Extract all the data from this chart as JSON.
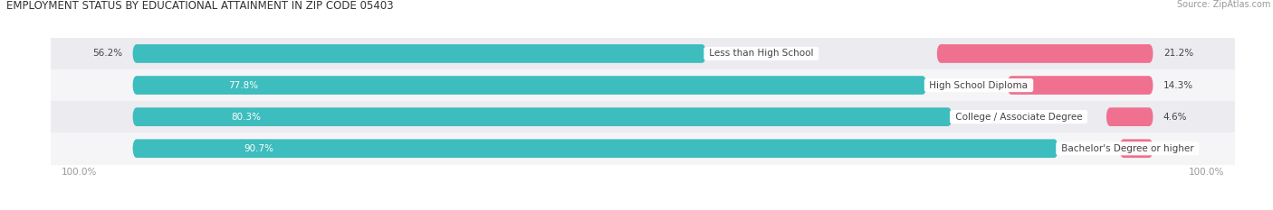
{
  "title": "EMPLOYMENT STATUS BY EDUCATIONAL ATTAINMENT IN ZIP CODE 05403",
  "source": "Source: ZipAtlas.com",
  "categories": [
    "Less than High School",
    "High School Diploma",
    "College / Associate Degree",
    "Bachelor's Degree or higher"
  ],
  "labor_force_pct": [
    56.2,
    77.8,
    80.3,
    90.7
  ],
  "unemployed_pct": [
    21.2,
    14.3,
    4.6,
    3.3
  ],
  "labor_force_color": "#3DBDBD",
  "unemployed_color": "#F07090",
  "row_bg_even": "#EBEBF0",
  "row_bg_odd": "#F5F5F8",
  "label_dark": "#444444",
  "label_white": "#FFFFFF",
  "axis_label_color": "#999999",
  "title_color": "#333333",
  "title_fontsize": 8.5,
  "source_fontsize": 7,
  "bar_label_fontsize": 7.5,
  "cat_label_fontsize": 7.5,
  "legend_fontsize": 7.5,
  "left_label_100": "100.0%",
  "right_label_100": "100.0%",
  "bar_height": 0.58,
  "figsize": [
    14.06,
    2.33
  ],
  "dpi": 100
}
